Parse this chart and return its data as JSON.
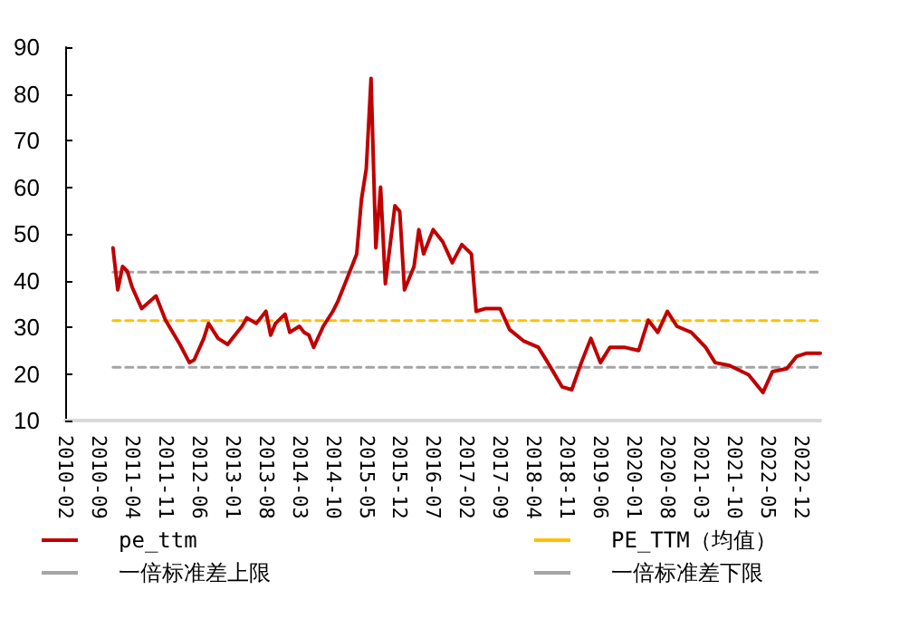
{
  "chart_data": {
    "type": "line",
    "x": [
      "2010-12",
      "2011-01",
      "2011-02",
      "2011-03",
      "2011-04",
      "2011-06",
      "2011-09",
      "2011-11",
      "2012-02",
      "2012-04",
      "2012-05",
      "2012-07",
      "2012-08",
      "2012-10",
      "2012-12",
      "2013-01",
      "2013-03",
      "2013-04",
      "2013-06",
      "2013-08",
      "2013-09",
      "2013-10",
      "2013-12",
      "2014-01",
      "2014-03",
      "2014-04",
      "2014-05",
      "2014-06",
      "2014-08",
      "2014-10",
      "2014-11",
      "2015-01",
      "2015-03",
      "2015-04",
      "2015-05",
      "2015-06",
      "2015-07",
      "2015-08",
      "2015-09",
      "2015-11",
      "2015-12",
      "2016-01",
      "2016-03",
      "2016-04",
      "2016-05",
      "2016-07",
      "2016-09",
      "2016-11",
      "2017-01",
      "2017-03",
      "2017-04",
      "2017-06",
      "2017-09",
      "2017-11",
      "2018-02",
      "2018-05",
      "2018-07",
      "2018-10",
      "2018-12",
      "2019-02",
      "2019-04",
      "2019-06",
      "2019-08",
      "2019-11",
      "2020-02",
      "2020-04",
      "2020-06",
      "2020-08",
      "2020-10",
      "2021-01",
      "2021-04",
      "2021-06",
      "2021-09",
      "2022-01",
      "2022-04",
      "2022-06",
      "2022-09",
      "2022-11",
      "2023-01",
      "2023-04"
    ],
    "series": [
      {
        "name": "pe_ttm",
        "color": "#c00000",
        "line_style": "solid",
        "values": [
          47,
          38,
          43,
          42,
          38.6,
          34,
          36.7,
          31.5,
          26.3,
          22.4,
          23,
          27.6,
          30.8,
          27.6,
          26.3,
          27.6,
          30.2,
          32,
          30.8,
          33.4,
          28.3,
          30.8,
          32.8,
          28.9,
          30.2,
          28.9,
          28.3,
          25.7,
          30.2,
          33.4,
          35.4,
          40.5,
          45.7,
          57.4,
          63.9,
          83.3,
          47,
          60,
          39.3,
          56,
          54.8,
          38,
          43,
          50.9,
          45.7,
          50.9,
          48.3,
          43.8,
          47.7,
          45.7,
          33.4,
          34,
          34,
          29.5,
          27,
          25.7,
          22.4,
          17.2,
          16.6,
          22.4,
          27.6,
          22.4,
          25.7,
          25.7,
          25,
          31.5,
          28.9,
          33.4,
          30.2,
          28.9,
          25.7,
          22.4,
          21.8,
          19.8,
          16,
          20.5,
          21.1,
          23.7,
          24.4,
          24.4
        ]
      },
      {
        "name": "PE_TTM（均值）",
        "color": "#ffc000",
        "line_style": "dashed",
        "x": [
          "2010-12",
          "2023-04"
        ],
        "values": [
          31.4,
          31.4
        ]
      },
      {
        "name": "一倍标准差上限",
        "color": "#a5a5a5",
        "line_style": "dashed",
        "x": [
          "2010-12",
          "2023-04"
        ],
        "values": [
          41.8,
          41.8
        ]
      },
      {
        "name": "一倍标准差下限",
        "color": "#a5a5a5",
        "line_style": "dashed",
        "x": [
          "2010-12",
          "2023-04"
        ],
        "values": [
          21.4,
          21.4
        ]
      }
    ],
    "xlim": [
      "2010-02",
      "2023-04"
    ],
    "xticks": [
      "2010-02",
      "2010-09",
      "2011-04",
      "2011-11",
      "2012-06",
      "2013-01",
      "2013-08",
      "2014-03",
      "2014-10",
      "2015-05",
      "2015-12",
      "2016-07",
      "2017-02",
      "2017-09",
      "2018-04",
      "2018-11",
      "2019-06",
      "2020-01",
      "2020-08",
      "2021-03",
      "2021-10",
      "2022-05",
      "2022-12"
    ],
    "ylim": [
      10,
      90
    ],
    "yticks": [
      10,
      20,
      30,
      40,
      50,
      60,
      70,
      80,
      90
    ],
    "grid": false,
    "legend": "bottom",
    "marker": "none"
  }
}
